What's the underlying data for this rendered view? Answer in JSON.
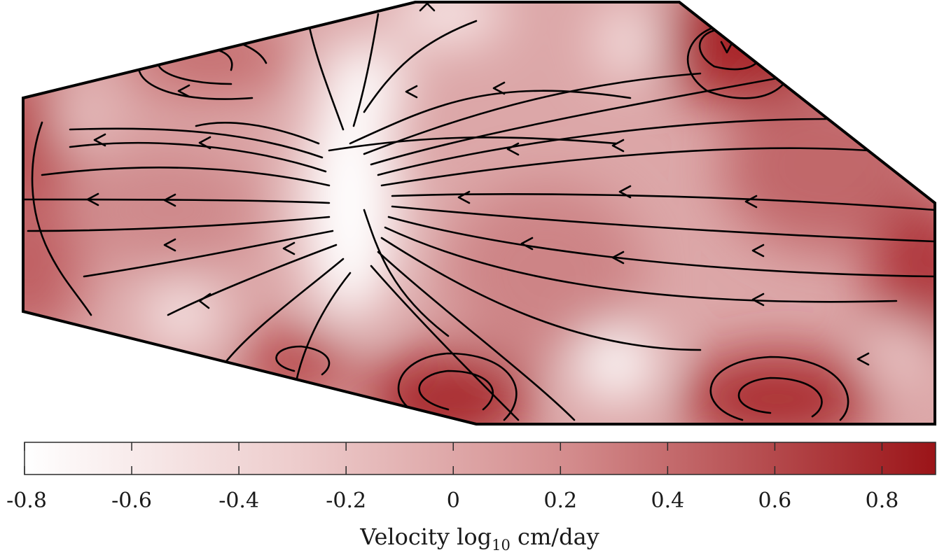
{
  "chart_data": {
    "type": "heatmap",
    "subtype": "velocity field with streamlines",
    "colorbar": {
      "title_prefix": "Velocity log",
      "title_subscript": "10",
      "title_suffix": " cm/day",
      "range": [
        -0.8,
        0.9
      ],
      "ticks": [
        -0.8,
        -0.6,
        -0.4,
        -0.2,
        0,
        0.2,
        0.4,
        0.6,
        0.8
      ],
      "tick_labels": [
        "-0.8",
        "-0.6",
        "-0.4",
        "-0.2",
        "0",
        "0.2",
        "0.4",
        "0.6",
        "0.8"
      ],
      "color_low": "#ffffff",
      "color_high": "#9b1418",
      "orientation": "horizontal",
      "placement": "bottom"
    },
    "field": {
      "domain_shape": "irregular polygon",
      "low_velocity_zone": "center-left vertical band",
      "high_velocity_zones": [
        "left edge",
        "top-right corner",
        "right edge",
        "bottom-center",
        "bottom-right"
      ]
    },
    "streamlines": {
      "color": "#000000",
      "flow_direction": "right-to-left",
      "arrows": true
    },
    "boundary_color": "#000000",
    "axes": "hidden"
  }
}
